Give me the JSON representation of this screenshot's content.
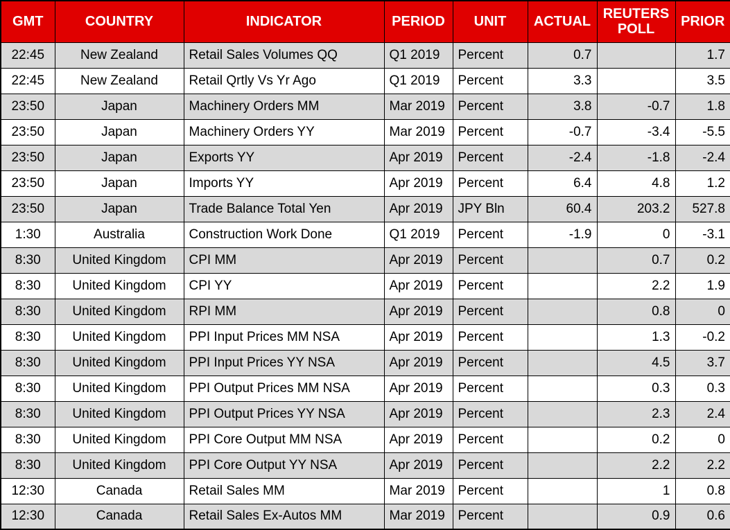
{
  "colors": {
    "header_bg": "#e00000",
    "header_text": "#ffffff",
    "row_stripe_bg": "#d9d9d9",
    "row_bg": "#ffffff",
    "grid": "#000000",
    "cell_text": "#000000"
  },
  "chart_data": {
    "type": "table",
    "columns": [
      "GMT",
      "COUNTRY",
      "INDICATOR",
      "PERIOD",
      "UNIT",
      "ACTUAL",
      "REUTERS POLL",
      "PRIOR"
    ],
    "rows": [
      {
        "gmt": "22:45",
        "country": "New Zealand",
        "indicator": "Retail Sales Volumes QQ",
        "period": "Q1 2019",
        "unit": "Percent",
        "actual": "0.7",
        "poll": "",
        "prior": "1.7"
      },
      {
        "gmt": "22:45",
        "country": "New Zealand",
        "indicator": "Retail Qrtly Vs Yr Ago",
        "period": "Q1 2019",
        "unit": "Percent",
        "actual": "3.3",
        "poll": "",
        "prior": "3.5"
      },
      {
        "gmt": "23:50",
        "country": "Japan",
        "indicator": "Machinery Orders MM",
        "period": "Mar 2019",
        "unit": "Percent",
        "actual": "3.8",
        "poll": "-0.7",
        "prior": "1.8"
      },
      {
        "gmt": "23:50",
        "country": "Japan",
        "indicator": "Machinery Orders YY",
        "period": "Mar 2019",
        "unit": "Percent",
        "actual": "-0.7",
        "poll": "-3.4",
        "prior": "-5.5"
      },
      {
        "gmt": "23:50",
        "country": "Japan",
        "indicator": "Exports YY",
        "period": "Apr 2019",
        "unit": "Percent",
        "actual": "-2.4",
        "poll": "-1.8",
        "prior": "-2.4"
      },
      {
        "gmt": "23:50",
        "country": "Japan",
        "indicator": "Imports YY",
        "period": "Apr 2019",
        "unit": "Percent",
        "actual": "6.4",
        "poll": "4.8",
        "prior": "1.2"
      },
      {
        "gmt": "23:50",
        "country": "Japan",
        "indicator": "Trade Balance Total Yen",
        "period": "Apr 2019",
        "unit": "JPY Bln",
        "actual": "60.4",
        "poll": "203.2",
        "prior": "527.8"
      },
      {
        "gmt": "1:30",
        "country": "Australia",
        "indicator": "Construction Work Done",
        "period": "Q1 2019",
        "unit": "Percent",
        "actual": "-1.9",
        "poll": "0",
        "prior": "-3.1"
      },
      {
        "gmt": "8:30",
        "country": "United Kingdom",
        "indicator": "CPI MM",
        "period": "Apr 2019",
        "unit": "Percent",
        "actual": "",
        "poll": "0.7",
        "prior": "0.2"
      },
      {
        "gmt": "8:30",
        "country": "United Kingdom",
        "indicator": "CPI YY",
        "period": "Apr 2019",
        "unit": "Percent",
        "actual": "",
        "poll": "2.2",
        "prior": "1.9"
      },
      {
        "gmt": "8:30",
        "country": "United Kingdom",
        "indicator": "RPI MM",
        "period": "Apr 2019",
        "unit": "Percent",
        "actual": "",
        "poll": "0.8",
        "prior": "0"
      },
      {
        "gmt": "8:30",
        "country": "United Kingdom",
        "indicator": "PPI Input Prices MM NSA",
        "period": "Apr 2019",
        "unit": "Percent",
        "actual": "",
        "poll": "1.3",
        "prior": "-0.2"
      },
      {
        "gmt": "8:30",
        "country": "United Kingdom",
        "indicator": "PPI Input Prices YY NSA",
        "period": "Apr 2019",
        "unit": "Percent",
        "actual": "",
        "poll": "4.5",
        "prior": "3.7"
      },
      {
        "gmt": "8:30",
        "country": "United Kingdom",
        "indicator": "PPI Output Prices MM NSA",
        "period": "Apr 2019",
        "unit": "Percent",
        "actual": "",
        "poll": "0.3",
        "prior": "0.3"
      },
      {
        "gmt": "8:30",
        "country": "United Kingdom",
        "indicator": "PPI Output Prices YY NSA",
        "period": "Apr 2019",
        "unit": "Percent",
        "actual": "",
        "poll": "2.3",
        "prior": "2.4"
      },
      {
        "gmt": "8:30",
        "country": "United Kingdom",
        "indicator": "PPI Core Output MM NSA",
        "period": "Apr 2019",
        "unit": "Percent",
        "actual": "",
        "poll": "0.2",
        "prior": "0"
      },
      {
        "gmt": "8:30",
        "country": "United Kingdom",
        "indicator": "PPI Core Output YY NSA",
        "period": "Apr 2019",
        "unit": "Percent",
        "actual": "",
        "poll": "2.2",
        "prior": "2.2"
      },
      {
        "gmt": "12:30",
        "country": "Canada",
        "indicator": "Retail Sales MM",
        "period": "Mar 2019",
        "unit": "Percent",
        "actual": "",
        "poll": "1",
        "prior": "0.8"
      },
      {
        "gmt": "12:30",
        "country": "Canada",
        "indicator": "Retail Sales Ex-Autos MM",
        "period": "Mar 2019",
        "unit": "Percent",
        "actual": "",
        "poll": "0.9",
        "prior": "0.6"
      }
    ]
  }
}
